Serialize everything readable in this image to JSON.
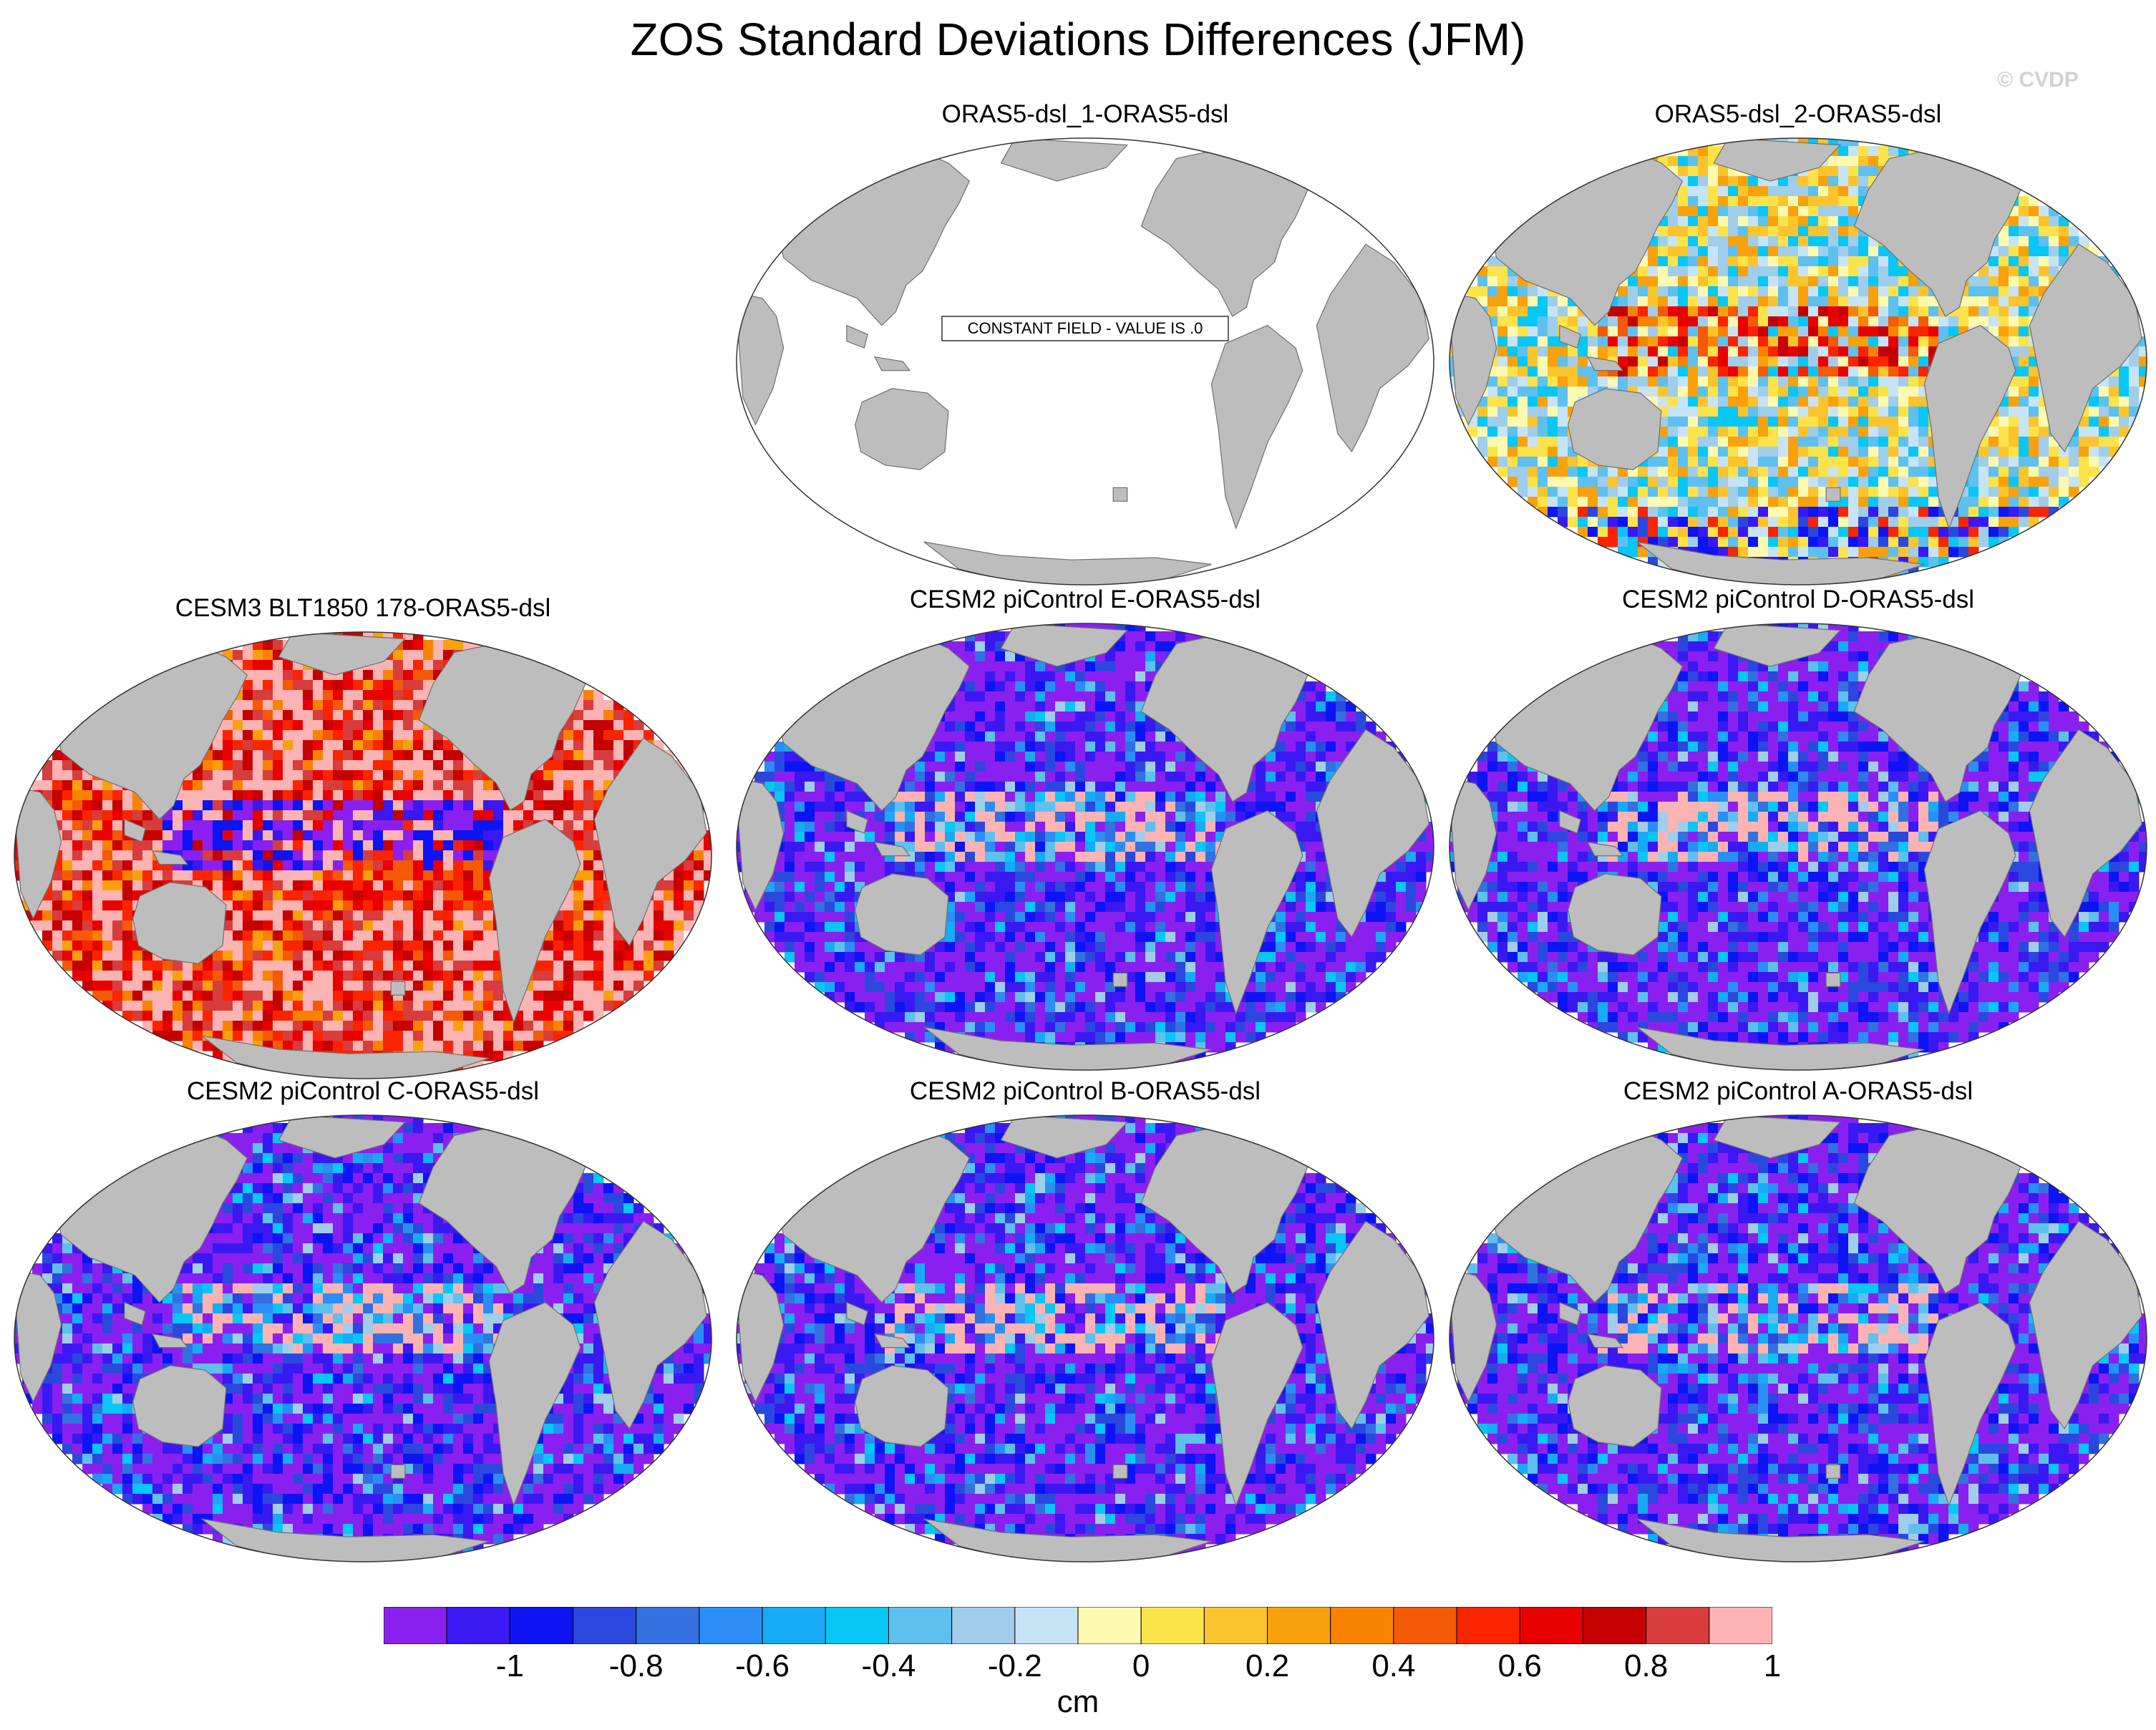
{
  "title": "ZOS Standard Deviations Differences (JFM)",
  "watermark": "© CVDP",
  "constant_field_message": "CONSTANT FIELD - VALUE IS .0",
  "colorbar": {
    "units": "cm",
    "labels": [
      "-1",
      "-0.8",
      "-0.6",
      "-0.4",
      "-0.2",
      "0",
      "0.2",
      "0.4",
      "0.6",
      "0.8",
      "1"
    ],
    "colors": [
      "#8a20f0",
      "#3a18f2",
      "#0c14f4",
      "#2b48de",
      "#3370e0",
      "#2b8ef6",
      "#16abf4",
      "#08c6f6",
      "#5ec0ee",
      "#a0cdea",
      "#c6e4f6",
      "#fdfab0",
      "#fde34a",
      "#fbc42c",
      "#f9a10c",
      "#f98300",
      "#f45a08",
      "#fb2400",
      "#e80000",
      "#c60000",
      "#d83c3c",
      "#fcb3b3"
    ]
  },
  "colors": {
    "land": "#bdbdbd",
    "ocean_blank": "#ffffff",
    "coast": "#707070"
  },
  "chart_data": {
    "type": "heatmap",
    "projection": "robinson, pacific-centered",
    "variable": "ZOS standard deviation difference",
    "season": "JFM",
    "units": "cm",
    "color_range": [
      -1.1,
      1.1
    ],
    "panels": [
      {
        "title": "ORAS5-dsl_1-ORAS5-dsl",
        "constant_field": true,
        "value": 0
      },
      {
        "title": "ORAS5-dsl_2-ORAS5-dsl",
        "pattern": "mixed",
        "dominant_sign": "mixed",
        "equatorial_pacific": "positive"
      },
      {
        "title": "CESM3 BLT1850 178-ORAS5-dsl",
        "pattern": "mostly positive",
        "dominant_sign": "positive",
        "equatorial_pacific": "negative"
      },
      {
        "title": "CESM2 piControl E-ORAS5-dsl",
        "pattern": "mostly negative",
        "dominant_sign": "negative",
        "tropical_pacific": "positive"
      },
      {
        "title": "CESM2 piControl D-ORAS5-dsl",
        "pattern": "mostly negative",
        "dominant_sign": "negative",
        "tropical_pacific": "positive"
      },
      {
        "title": "CESM2 piControl C-ORAS5-dsl",
        "pattern": "mostly negative",
        "dominant_sign": "negative",
        "tropical_pacific": "positive"
      },
      {
        "title": "CESM2 piControl B-ORAS5-dsl",
        "pattern": "mostly negative",
        "dominant_sign": "negative",
        "tropical_pacific": "positive"
      },
      {
        "title": "CESM2 piControl A-ORAS5-dsl",
        "pattern": "mostly negative",
        "dominant_sign": "negative",
        "tropical_pacific": "positive"
      }
    ]
  }
}
